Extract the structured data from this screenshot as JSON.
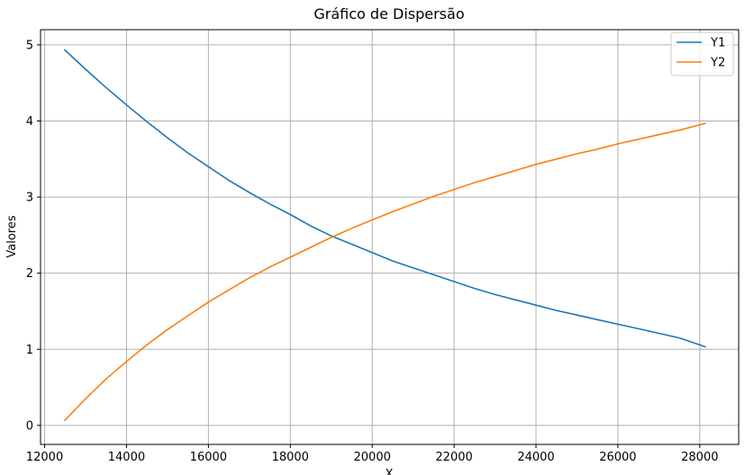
{
  "chart_data": {
    "type": "line",
    "title": "Gráfico de Dispersão",
    "xlabel": "X",
    "ylabel": "Valores",
    "xlim": [
      11900,
      28950
    ],
    "ylim": [
      -0.25,
      5.2
    ],
    "xticks": [
      12000,
      14000,
      16000,
      18000,
      20000,
      22000,
      24000,
      26000,
      28000
    ],
    "yticks": [
      0,
      1,
      2,
      3,
      4,
      5
    ],
    "grid": true,
    "legend_position": "top-right",
    "series": [
      {
        "name": "Y1",
        "color": "#1f77b4",
        "x": [
          12480,
          13000,
          13500,
          14000,
          14500,
          15000,
          15500,
          16000,
          16500,
          17000,
          17500,
          18000,
          18500,
          19000,
          19500,
          20000,
          20500,
          21000,
          21500,
          22000,
          22500,
          23000,
          23500,
          24000,
          24500,
          25000,
          25500,
          26000,
          26500,
          27000,
          27500,
          28150
        ],
        "values": [
          4.94,
          4.68,
          4.44,
          4.21,
          3.99,
          3.78,
          3.58,
          3.4,
          3.22,
          3.06,
          2.91,
          2.77,
          2.62,
          2.49,
          2.38,
          2.27,
          2.16,
          2.07,
          1.98,
          1.89,
          1.8,
          1.72,
          1.65,
          1.58,
          1.51,
          1.45,
          1.39,
          1.33,
          1.27,
          1.21,
          1.15,
          1.03
        ]
      },
      {
        "name": "Y2",
        "color": "#ff7f0e",
        "x": [
          12480,
          13000,
          13500,
          14000,
          14500,
          15000,
          15500,
          16000,
          16500,
          17000,
          17500,
          18000,
          18500,
          19000,
          19500,
          20000,
          20500,
          21000,
          21500,
          22000,
          22500,
          23000,
          23500,
          24000,
          24500,
          25000,
          25500,
          26000,
          26500,
          27000,
          27500,
          28150
        ],
        "values": [
          0.06,
          0.35,
          0.61,
          0.84,
          1.06,
          1.26,
          1.44,
          1.62,
          1.78,
          1.94,
          2.08,
          2.21,
          2.34,
          2.47,
          2.59,
          2.7,
          2.81,
          2.91,
          3.01,
          3.1,
          3.19,
          3.27,
          3.35,
          3.43,
          3.5,
          3.57,
          3.63,
          3.7,
          3.76,
          3.82,
          3.88,
          3.97
        ]
      }
    ]
  }
}
